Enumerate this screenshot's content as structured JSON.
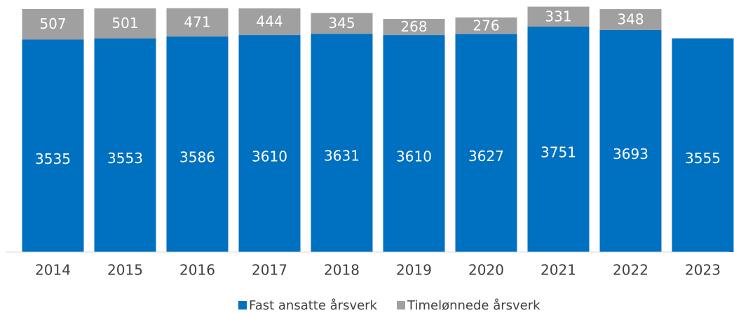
{
  "chart_data": {
    "type": "stacked_bar",
    "categories": [
      "2014",
      "2015",
      "2016",
      "2017",
      "2018",
      "2019",
      "2020",
      "2021",
      "2022",
      "2023"
    ],
    "series": [
      {
        "name": "Fast ansatte årsverk",
        "color": "#0070c0",
        "values": [
          3535,
          3553,
          3586,
          3610,
          3631,
          3610,
          3627,
          3751,
          3693,
          3555
        ]
      },
      {
        "name": "Timelønnede årsverk",
        "color": "#a0a0a0",
        "values": [
          507,
          501,
          471,
          444,
          345,
          268,
          276,
          331,
          348,
          null
        ]
      }
    ],
    "ylim": [
      0,
      4100
    ],
    "legend": "bottom"
  }
}
